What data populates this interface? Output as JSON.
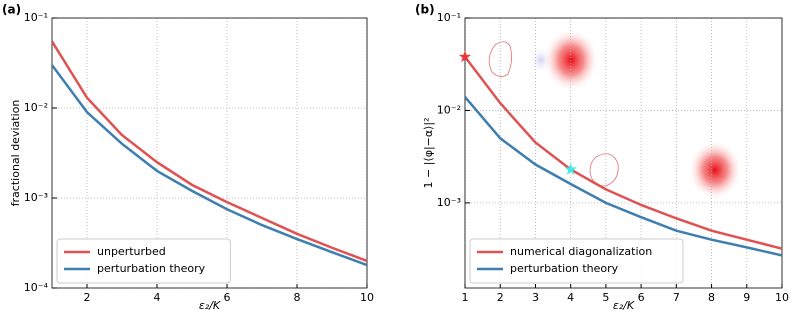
{
  "charts": [
    {
      "type": "line",
      "panel_label": "(a)",
      "ylabel": "fractional deviation",
      "xlabel": "ε₂/K",
      "log_y": true,
      "grid": true,
      "legend": "lower left",
      "xlim": [
        1,
        10
      ],
      "xticks": [
        2,
        4,
        6,
        8,
        10
      ],
      "ylim": [
        0.0001,
        0.1
      ],
      "yticks": [
        {
          "value": 0.0001,
          "label": "10⁻⁴"
        },
        {
          "value": 0.001,
          "label": "10⁻³"
        },
        {
          "value": 0.01,
          "label": "10⁻²"
        },
        {
          "value": 0.1,
          "label": "10⁻¹"
        }
      ],
      "x": [
        1,
        2,
        3,
        4,
        5,
        6,
        7,
        8,
        9,
        10
      ],
      "series": [
        {
          "name": "unperturbed",
          "color": "#e05252",
          "values": [
            0.055,
            0.013,
            0.005,
            0.0025,
            0.0014,
            0.0009,
            0.0006,
            0.0004,
            0.00028,
            0.0002
          ]
        },
        {
          "name": "perturbation theory",
          "color": "#3f7fb0",
          "values": [
            0.03,
            0.009,
            0.004,
            0.002,
            0.0012,
            0.00075,
            0.0005,
            0.00035,
            0.00025,
            0.00018
          ]
        }
      ]
    },
    {
      "type": "line",
      "panel_label": "(b)",
      "ylabel": "1 − |⟨φ|−α⟩|²",
      "xlabel": "ε₂/K",
      "log_y": true,
      "grid": true,
      "legend": "lower left",
      "xlim": [
        1,
        10
      ],
      "xticks": [
        1,
        2,
        3,
        4,
        5,
        6,
        7,
        8,
        9,
        10
      ],
      "ylim": [
        0.00012,
        0.1
      ],
      "yticks": [
        {
          "value": 0.001,
          "label": "10⁻³"
        },
        {
          "value": 0.01,
          "label": "10⁻²"
        },
        {
          "value": 0.1,
          "label": "10⁻¹"
        }
      ],
      "x": [
        1,
        2,
        3,
        4,
        5,
        6,
        7,
        8,
        9,
        10
      ],
      "series": [
        {
          "name": "numerical diagonalization",
          "color": "#e05252",
          "values": [
            0.038,
            0.012,
            0.0045,
            0.0023,
            0.0014,
            0.00095,
            0.00068,
            0.0005,
            0.0004,
            0.00032
          ]
        },
        {
          "name": "perturbation theory",
          "color": "#3f7fb0",
          "values": [
            0.014,
            0.005,
            0.0026,
            0.0016,
            0.001,
            0.0007,
            0.0005,
            0.0004,
            0.00033,
            0.00027
          ]
        }
      ],
      "star_markers": [
        {
          "x": 1,
          "y": 0.038,
          "color": "#e8383d"
        },
        {
          "x": 4,
          "y": 0.0023,
          "color": "#40e8e8"
        }
      ]
    }
  ]
}
